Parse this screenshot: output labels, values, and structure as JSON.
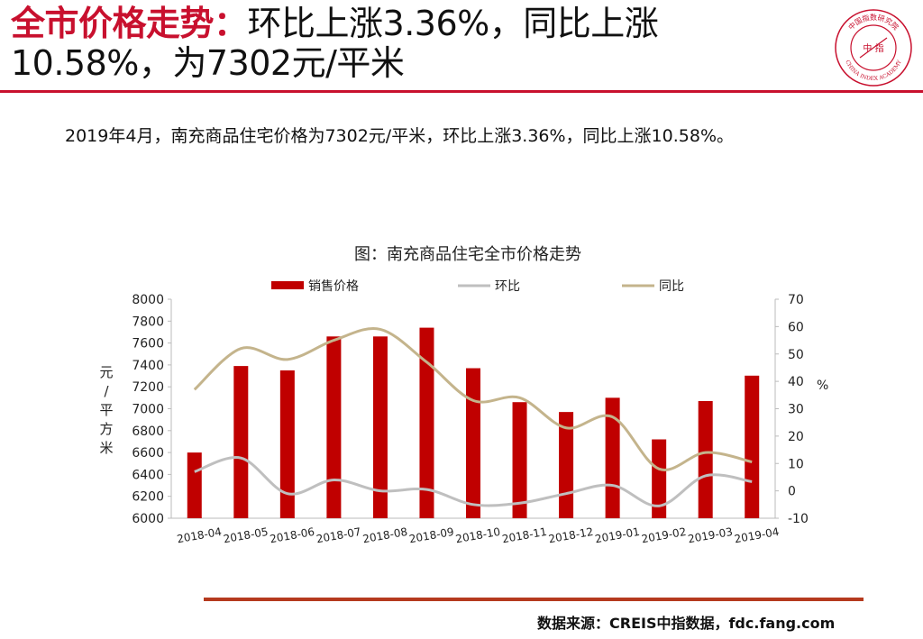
{
  "header": {
    "title_red": "全市价格走势：",
    "title_black": "环比上涨3.36%，同比上涨10.58%，为7302元/平米",
    "logo_text_top": "中国指数研究院",
    "logo_text_bottom": "CHINA INDEX ACADEMY",
    "logo_center": "中 指"
  },
  "summary": "2019年4月，南充商品住宅价格为7302元/平米，环比上涨3.36%，同比上涨10.58%。",
  "footer": {
    "source": "数据来源：CREIS中指数据，fdc.fang.com"
  },
  "colors": {
    "accent": "#c8102e",
    "bar": "#c00000",
    "mom": "#bfbfbf",
    "yoy": "#c4b48c",
    "footer_rule": "#b53a1e"
  },
  "chart_data": {
    "type": "bar",
    "title": "图：南充商品住宅全市价格走势",
    "categories": [
      "2018-04",
      "2018-05",
      "2018-06",
      "2018-07",
      "2018-08",
      "2018-09",
      "2018-10",
      "2018-11",
      "2018-12",
      "2019-01",
      "2019-02",
      "2019-03",
      "2019-04"
    ],
    "series": [
      {
        "name": "销售价格",
        "kind": "bar",
        "axis": "left",
        "values": [
          6600,
          7390,
          7350,
          7660,
          7660,
          7740,
          7370,
          7060,
          6970,
          7100,
          6720,
          7070,
          7302
        ]
      },
      {
        "name": "环比",
        "kind": "line",
        "axis": "right",
        "values": [
          7,
          12,
          -1,
          4,
          0,
          0.5,
          -5,
          -4.5,
          -1,
          2,
          -5.5,
          5.5,
          3.36
        ]
      },
      {
        "name": "同比",
        "kind": "line",
        "axis": "right",
        "values": [
          37,
          52,
          48,
          55,
          59,
          47,
          33,
          34,
          23,
          27,
          8,
          14,
          10.58
        ]
      }
    ],
    "ylabel": "元/平方米",
    "y2label": "%",
    "ylim": [
      6000,
      8000
    ],
    "yticks": [
      6000,
      6200,
      6400,
      6600,
      6800,
      7000,
      7200,
      7400,
      7600,
      7800,
      8000
    ],
    "y2lim": [
      -10,
      70
    ],
    "y2ticks": [
      -10,
      0,
      10,
      20,
      30,
      40,
      50,
      60,
      70
    ],
    "legend": "top",
    "grid": false
  }
}
